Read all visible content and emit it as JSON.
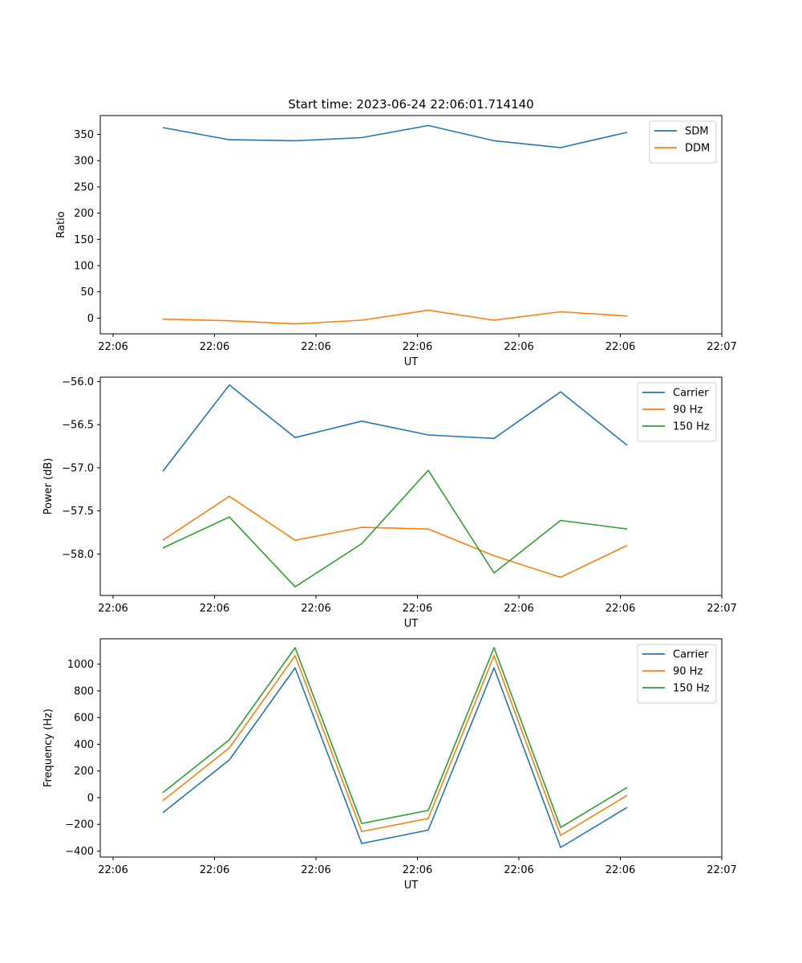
{
  "chart_data": [
    {
      "type": "line",
      "title": "Start time: 2023-06-24 22:06:01.714140",
      "xlabel": "UT",
      "ylabel": "Ratio",
      "x_tick_labels": [
        "22:06",
        "22:06",
        "22:06",
        "22:06",
        "22:06",
        "22:06",
        "22:06"
      ],
      "x_tick_last": "22:07",
      "y_ticks": [
        0,
        50,
        100,
        150,
        200,
        250,
        300,
        350
      ],
      "ylim": [
        -30,
        386
      ],
      "legend_position": "top-right",
      "grid": false,
      "series": [
        {
          "name": "SDM",
          "color": "#1f77b4",
          "values": [
            363,
            340,
            338,
            344,
            367,
            338,
            325,
            354
          ]
        },
        {
          "name": "DDM",
          "color": "#ff7f0e",
          "values": [
            -2,
            -5,
            -11,
            -4,
            15,
            -4,
            12,
            4
          ]
        }
      ]
    },
    {
      "type": "line",
      "title": "",
      "xlabel": "UT",
      "ylabel": "Power (dB)",
      "x_tick_labels": [
        "22:06",
        "22:06",
        "22:06",
        "22:06",
        "22:06",
        "22:06",
        "22:06"
      ],
      "x_tick_last": "22:07",
      "y_ticks": [
        -58.0,
        -57.5,
        -57.0,
        -56.5,
        -56.0
      ],
      "y_tick_labels": [
        "−58.0",
        "−57.5",
        "−57.0",
        "−56.5",
        "−56.0"
      ],
      "ylim": [
        -58.48,
        -55.95
      ],
      "legend_position": "top-right",
      "grid": false,
      "series": [
        {
          "name": "Carrier",
          "color": "#1f77b4",
          "values": [
            -57.04,
            -56.04,
            -56.65,
            -56.46,
            -56.62,
            -56.66,
            -56.12,
            -56.74
          ]
        },
        {
          "name": "90 Hz",
          "color": "#ff7f0e",
          "values": [
            -57.84,
            -57.33,
            -57.84,
            -57.69,
            -57.71,
            -58.02,
            -58.27,
            -57.9
          ]
        },
        {
          "name": "150 Hz",
          "color": "#2ca02c",
          "values": [
            -57.93,
            -57.57,
            -58.38,
            -57.88,
            -57.03,
            -58.22,
            -57.61,
            -57.71
          ]
        }
      ]
    },
    {
      "type": "line",
      "title": "",
      "xlabel": "UT",
      "ylabel": "Frequency (Hz)",
      "x_tick_labels": [
        "22:06",
        "22:06",
        "22:06",
        "22:06",
        "22:06",
        "22:06",
        "22:06"
      ],
      "x_tick_last": "22:07",
      "y_ticks": [
        -400,
        -200,
        0,
        200,
        400,
        600,
        800,
        1000
      ],
      "y_tick_labels": [
        "−400",
        "−200",
        "0",
        "200",
        "400",
        "600",
        "800",
        "1000"
      ],
      "ylim": [
        -445,
        1190
      ],
      "legend_position": "top-right",
      "grid": false,
      "series": [
        {
          "name": "Carrier",
          "color": "#1f77b4",
          "values": [
            -113,
            283,
            973,
            -343,
            -243,
            973,
            -373,
            -73
          ]
        },
        {
          "name": "90 Hz",
          "color": "#ff7f0e",
          "values": [
            -23,
            373,
            1063,
            -253,
            -156,
            1063,
            -283,
            17
          ]
        },
        {
          "name": "150 Hz",
          "color": "#2ca02c",
          "values": [
            37,
            433,
            1123,
            -193,
            -96,
            1123,
            -223,
            77
          ]
        }
      ]
    }
  ]
}
